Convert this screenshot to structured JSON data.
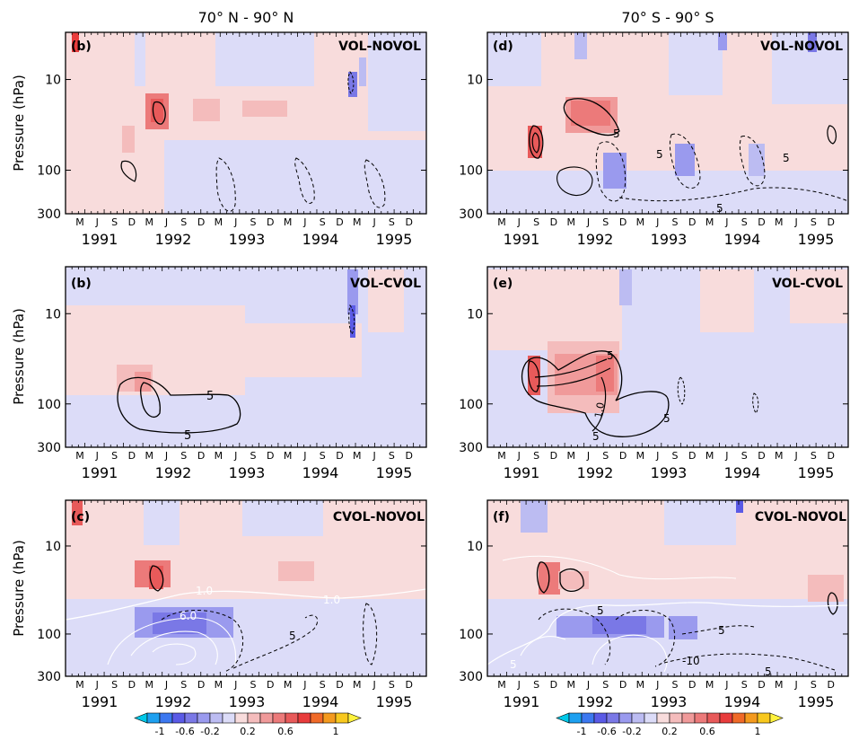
{
  "columns": [
    {
      "title": "70° N - 90° N"
    },
    {
      "title": "70° S - 90° S"
    }
  ],
  "chart_data": {
    "type": "heatmap",
    "ylabel": "Pressure (hPa)",
    "y_ticks": [
      "10",
      "100",
      "300"
    ],
    "month_labels": [
      "M",
      "J",
      "S",
      "D",
      "M",
      "J",
      "S",
      "D",
      "M",
      "J",
      "S",
      "D",
      "M",
      "J",
      "S",
      "D",
      "M",
      "J",
      "S",
      "D"
    ],
    "year_labels": [
      "1991",
      "1992",
      "1993",
      "1994",
      "1995"
    ],
    "panels": [
      {
        "label": "(b)",
        "title": "VOL-NOVOL",
        "column": 0,
        "row": 0,
        "contours": [
          {
            "label": "",
            "style": "solid"
          },
          {
            "label": "",
            "style": "dashed"
          }
        ]
      },
      {
        "label": "(d)",
        "title": "VOL-NOVOL",
        "column": 1,
        "row": 0,
        "contours": [
          {
            "label": "5",
            "style": "solid"
          },
          {
            "label": "5",
            "style": "dashed"
          },
          {
            "label": "5",
            "style": "dashed"
          },
          {
            "label": "5",
            "style": "dashed"
          }
        ]
      },
      {
        "label": "(b)",
        "title": "VOL-CVOL",
        "column": 0,
        "row": 1,
        "contours": [
          {
            "label": "5",
            "style": "solid"
          },
          {
            "label": "5",
            "style": "solid"
          }
        ]
      },
      {
        "label": "(e)",
        "title": "VOL-CVOL",
        "column": 1,
        "row": 1,
        "contours": [
          {
            "label": "5",
            "style": "solid"
          },
          {
            "label": "1.0",
            "style": "solid"
          },
          {
            "label": "5",
            "style": "solid"
          },
          {
            "label": "5",
            "style": "solid"
          }
        ]
      },
      {
        "label": "(c)",
        "title": "CVOL-NOVOL",
        "column": 0,
        "row": 2,
        "contours": [
          {
            "label": "1.0",
            "style": "white"
          },
          {
            "label": "1.0",
            "style": "white"
          },
          {
            "label": "6.0",
            "style": "white"
          },
          {
            "label": "5",
            "style": "dashed"
          }
        ]
      },
      {
        "label": "(f)",
        "title": "CVOL-NOVOL",
        "column": 1,
        "row": 2,
        "contours": [
          {
            "label": "5",
            "style": "dashed"
          },
          {
            "label": "5",
            "style": "dashed"
          },
          {
            "label": "-10",
            "style": "dashed"
          },
          {
            "label": "5",
            "style": "dashed"
          },
          {
            "label": "5",
            "style": "white"
          }
        ]
      }
    ],
    "colorbar": {
      "colors": [
        "#00c8e8",
        "#1ea0f0",
        "#3c78f0",
        "#5a5ae6",
        "#7a78e6",
        "#9a9aee",
        "#bcbcf2",
        "#dcdcf8",
        "#f8dcdc",
        "#f4bcbc",
        "#f09a9a",
        "#ec7a7a",
        "#e85a5a",
        "#e83c3c",
        "#f06a28",
        "#f49a1e",
        "#f8c81e",
        "#fff23c"
      ],
      "tick_labels": [
        "-1",
        "-0.6",
        "-0.2",
        "0.2",
        "0.6",
        "1"
      ]
    }
  }
}
